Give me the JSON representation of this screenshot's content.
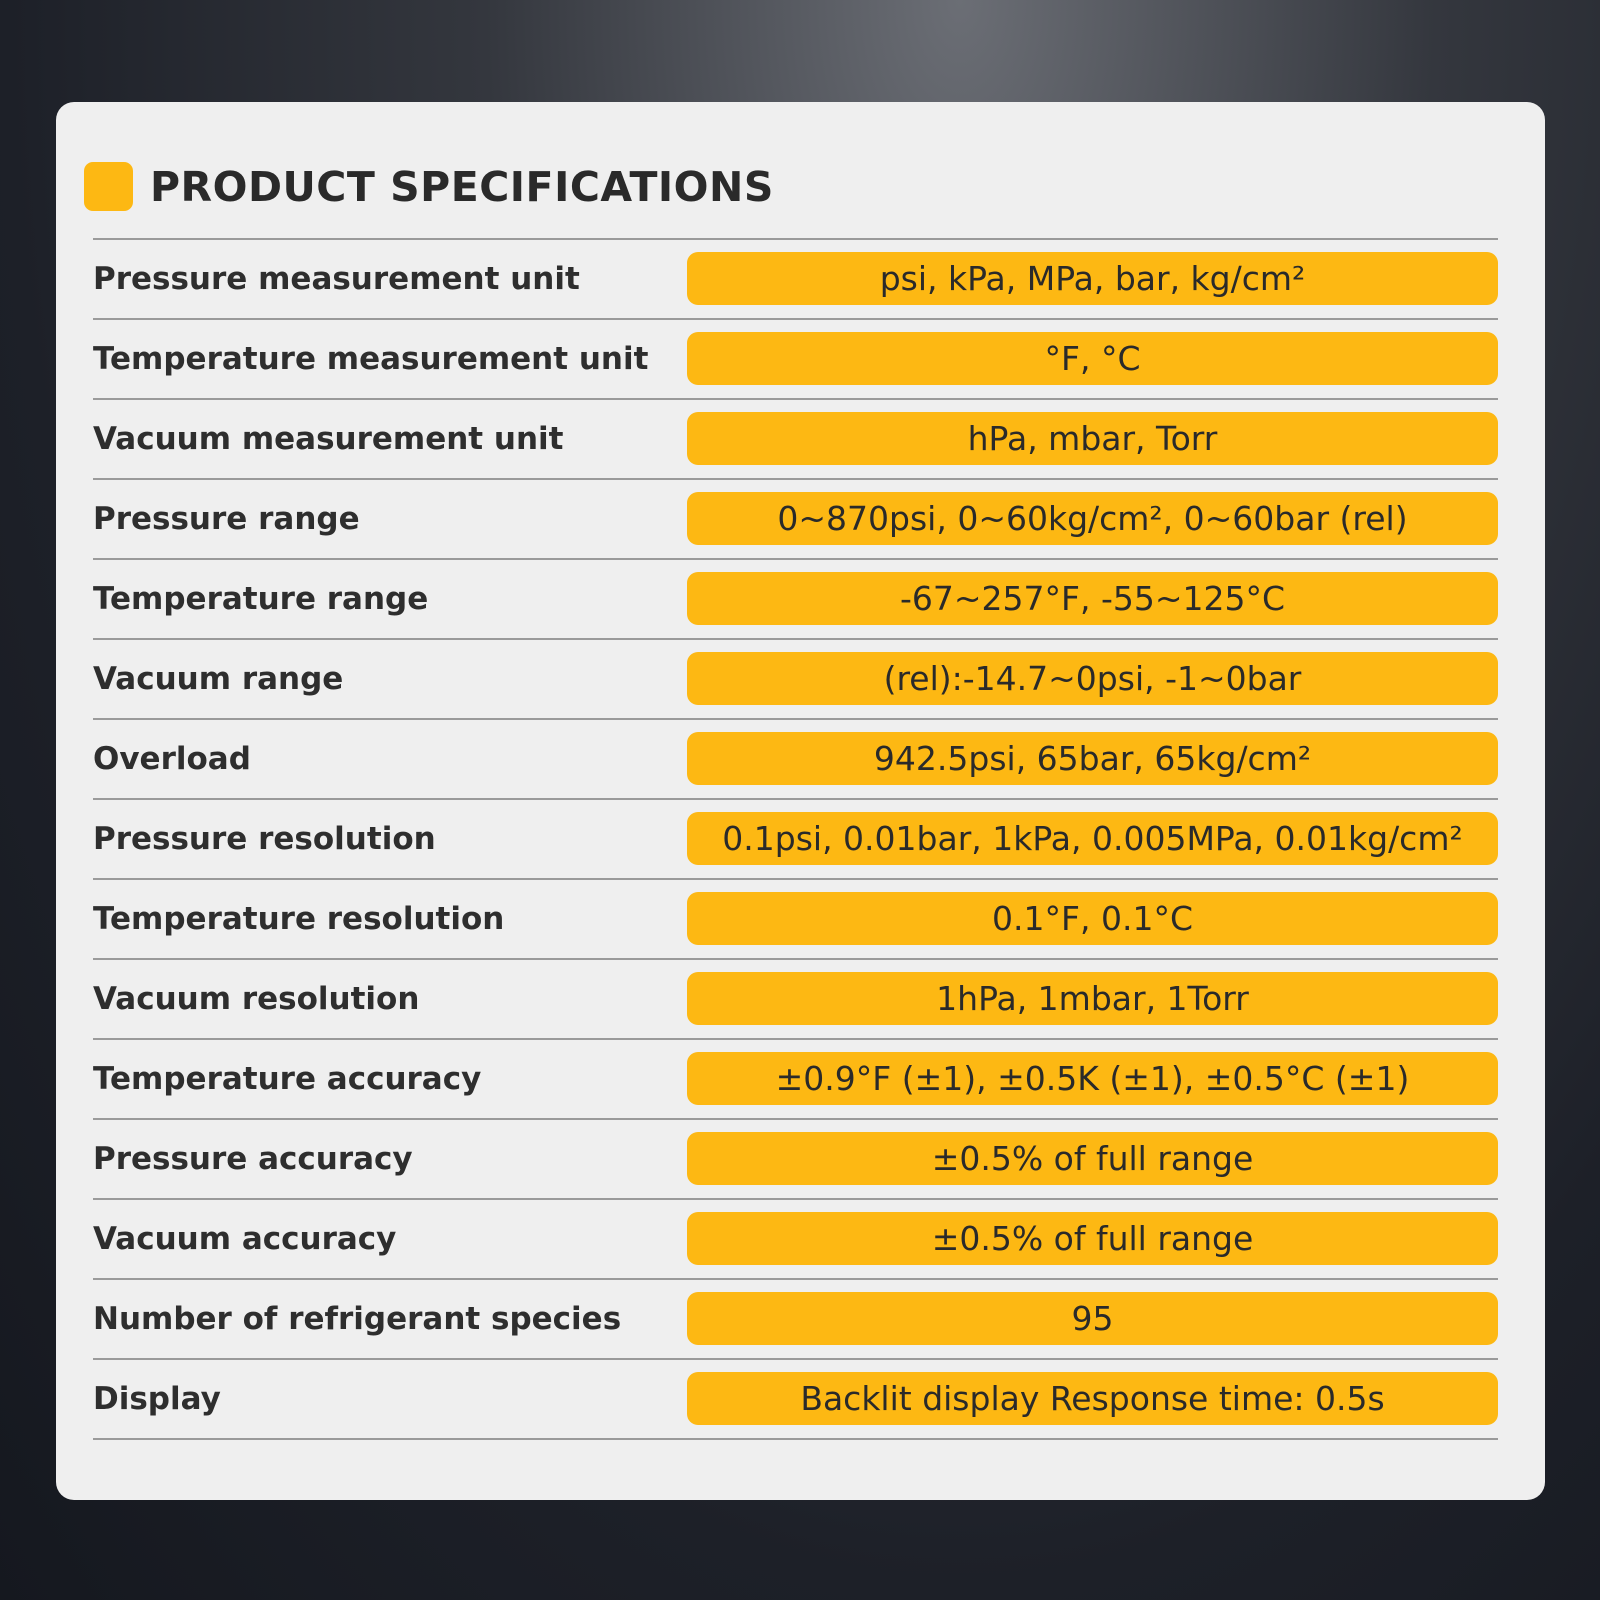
{
  "title": "PRODUCT SPECIFICATIONS",
  "rows": [
    [
      "Pressure measurement unit",
      "psi, kPa, MPa, bar, kg/cm²"
    ],
    [
      "Temperature measurement unit",
      "°F, °C"
    ],
    [
      "Vacuum measurement unit",
      "hPa, mbar, Torr"
    ],
    [
      "Pressure range",
      "0~870psi, 0~60kg/cm², 0~60bar (rel)"
    ],
    [
      "Temperature range",
      "-67~257°F, -55~125°C"
    ],
    [
      "Vacuum range",
      "(rel):-14.7~0psi, -1~0bar"
    ],
    [
      "Overload",
      "942.5psi, 65bar, 65kg/cm²"
    ],
    [
      "Pressure resolution",
      "0.1psi, 0.01bar, 1kPa, 0.005MPa, 0.01kg/cm²"
    ],
    [
      "Temperature resolution",
      "0.1°F, 0.1°C"
    ],
    [
      "Vacuum resolution",
      "1hPa, 1mbar, 1Torr"
    ],
    [
      "Temperature accuracy",
      "±0.9°F (±1), ±0.5K (±1), ±0.5°C (±1)"
    ],
    [
      "Pressure accuracy",
      "±0.5% of full range"
    ],
    [
      "Vacuum accuracy",
      "±0.5% of full range"
    ],
    [
      "Number of refrigerant species",
      "95"
    ],
    [
      "Display",
      "Backlit display Response time:  0.5s"
    ]
  ]
}
